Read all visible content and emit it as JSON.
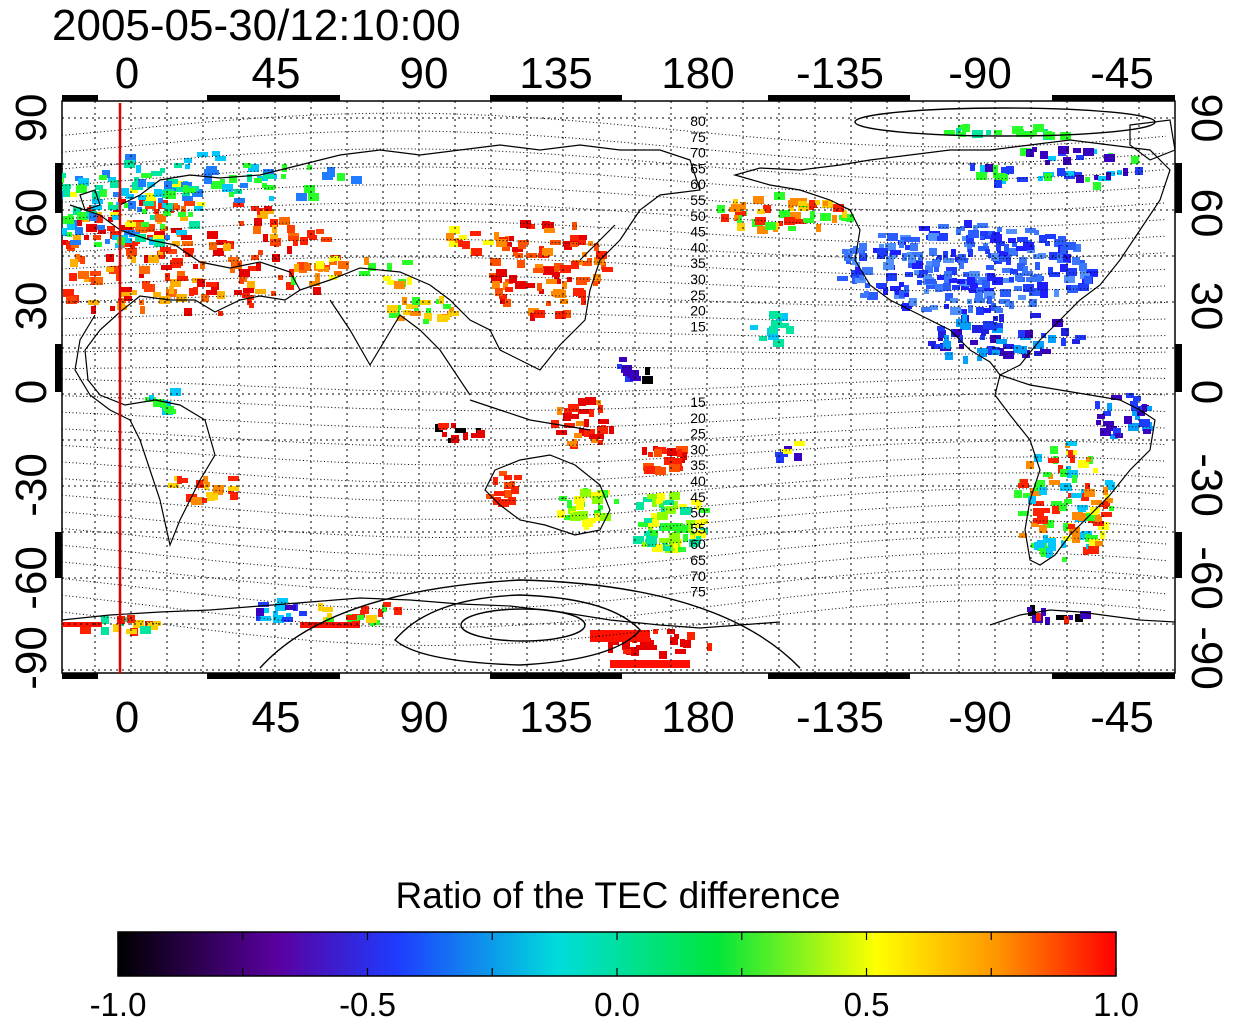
{
  "title": "2005-05-30/12:10:00",
  "map": {
    "top_lon_labels": [
      "0",
      "45",
      "90",
      "135",
      "180",
      "-135",
      "-90",
      "-45"
    ],
    "bottom_lon_labels": [
      "0",
      "45",
      "90",
      "135",
      "180",
      "-135",
      "-90",
      "-45"
    ],
    "left_lat_labels": [
      "90",
      "60",
      "30",
      "0",
      "-30",
      "-60",
      "-90"
    ],
    "right_lat_labels": [
      "90",
      "60",
      "30",
      "0",
      "-30",
      "-60",
      "-90"
    ],
    "contour_labels_north": [
      "80",
      "75",
      "70",
      "65",
      "60",
      "55",
      "50",
      "45",
      "40",
      "35",
      "30",
      "25",
      "20",
      "15"
    ],
    "contour_labels_south": [
      "15",
      "20",
      "25",
      "30",
      "35",
      "40",
      "45",
      "50",
      "55",
      "60",
      "65",
      "70",
      "75"
    ],
    "marker_line_color": "#dd0000"
  },
  "colorbar": {
    "title": "Ratio of the TEC difference",
    "tick_labels": [
      "-1.0",
      "-0.5",
      "0.0",
      "0.5",
      "1.0"
    ],
    "range": [
      -1.0,
      1.0
    ],
    "stops": [
      "#000000",
      "#5a00a0",
      "#1e3cff",
      "#00dcdc",
      "#00e63c",
      "#ffff00",
      "#ff9600",
      "#ff0000"
    ]
  }
}
